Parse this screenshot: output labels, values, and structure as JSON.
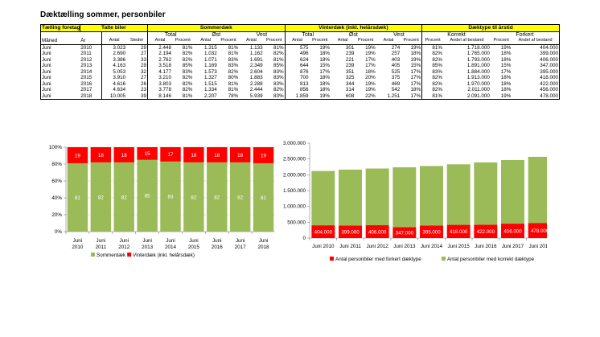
{
  "title": "Dæktælling sommer, personbiler",
  "table": {
    "header_yellow": [
      "Tælling foretaget",
      "Talte biler",
      "Sommerdæk",
      "Vinterdæk (inkl. helårsdæk)",
      "Dæktype til årstid"
    ],
    "header_groups": [
      "Total",
      "Øst",
      "Vest",
      "Total",
      "Øst",
      "Vest",
      "Korrekt",
      "Forkert"
    ],
    "header_sub": [
      "Måned",
      "År",
      "Antal",
      "Steder",
      "Antal",
      "Procent",
      "Antal",
      "Procent",
      "Antal",
      "Procent",
      "Antal",
      "Procent",
      "Antal",
      "Procent",
      "Antal",
      "Procent",
      "Procent",
      "Andel af bestand",
      "Procent",
      "Andel af bestand"
    ],
    "rows": [
      [
        "Juni",
        "2010",
        "3.023",
        "29",
        "2.448",
        "81%",
        "1.315",
        "81%",
        "1.133",
        "81%",
        "575",
        "19%",
        "301",
        "19%",
        "274",
        "19%",
        "81%",
        "1.718.000",
        "19%",
        "404.000"
      ],
      [
        "Juni",
        "2011",
        "2.690",
        "27",
        "2.194",
        "82%",
        "1.032",
        "81%",
        "1.162",
        "82%",
        "496",
        "18%",
        "239",
        "19%",
        "257",
        "18%",
        "82%",
        "1.765.000",
        "18%",
        "399.000"
      ],
      [
        "Juni",
        "2012",
        "3.386",
        "33",
        "2.762",
        "82%",
        "1.071",
        "83%",
        "1.691",
        "81%",
        "624",
        "18%",
        "221",
        "17%",
        "403",
        "19%",
        "82%",
        "1.793.000",
        "18%",
        "406.000"
      ],
      [
        "Juni",
        "2013",
        "4.163",
        "29",
        "3.518",
        "85%",
        "1.169",
        "83%",
        "2.349",
        "85%",
        "644",
        "15%",
        "239",
        "17%",
        "405",
        "15%",
        "85%",
        "1.891.000",
        "15%",
        "347.000"
      ],
      [
        "Juni",
        "2014",
        "5.053",
        "32",
        "4.177",
        "83%",
        "1.573",
        "82%",
        "2.604",
        "83%",
        "876",
        "17%",
        "351",
        "18%",
        "525",
        "17%",
        "83%",
        "1.884.000",
        "17%",
        "395.000"
      ],
      [
        "Juni",
        "2015",
        "3.910",
        "27",
        "3.210",
        "82%",
        "1.327",
        "80%",
        "1.883",
        "83%",
        "700",
        "18%",
        "325",
        "20%",
        "375",
        "17%",
        "82%",
        "1.913.000",
        "18%",
        "418.000"
      ],
      [
        "Juni",
        "2016",
        "4.616",
        "26",
        "3.803",
        "82%",
        "1.515",
        "81%",
        "2.288",
        "83%",
        "813",
        "18%",
        "344",
        "19%",
        "469",
        "17%",
        "82%",
        "1.970.000",
        "18%",
        "422.000"
      ],
      [
        "Juni",
        "2017",
        "4.634",
        "23",
        "3.778",
        "82%",
        "1.334",
        "81%",
        "2.444",
        "82%",
        "856",
        "18%",
        "314",
        "19%",
        "542",
        "18%",
        "82%",
        "2.011.000",
        "18%",
        "456.000"
      ],
      [
        "Juni",
        "2018",
        "10.005",
        "39",
        "8.146",
        "81%",
        "2.207",
        "78%",
        "5.939",
        "83%",
        "1.859",
        "19%",
        "608",
        "22%",
        "1.251",
        "17%",
        "81%",
        "2.091.000",
        "19%",
        "478.000"
      ]
    ]
  },
  "chart_data": [
    {
      "type": "bar",
      "stacked": true,
      "categories": [
        "Juni 2010",
        "Juni 2011",
        "Juni 2012",
        "Juni 2013",
        "Juni 2014",
        "Juni 2015",
        "Juni 2016",
        "Juni 2017",
        "Juni 2018"
      ],
      "series": [
        {
          "name": "Sommerdæk",
          "values": [
            81,
            82,
            82,
            85,
            83,
            82,
            82,
            82,
            81
          ],
          "color": "#9bbb59"
        },
        {
          "name": "Vinterdæk (inkl. helårsdæk)",
          "values": [
            19,
            18,
            18,
            15,
            17,
            18,
            18,
            18,
            19
          ],
          "color": "#ff0000"
        }
      ],
      "yticks": [
        "0%",
        "20%",
        "40%",
        "60%",
        "80%",
        "100%"
      ],
      "ylim": [
        0,
        100
      ],
      "legend": "bottom",
      "grid": true
    },
    {
      "type": "bar",
      "stacked": true,
      "categories": [
        "Juni 2010",
        "Juni 2011",
        "Juni 2012",
        "Juni 2013",
        "Juni 2014",
        "Juni 2015",
        "Juni 2016",
        "Juni 2017",
        "Juni 2018"
      ],
      "series": [
        {
          "name": "Antal personbiler med forkert dæktype",
          "values": [
            404000,
            399000,
            406000,
            347000,
            395000,
            418000,
            422000,
            456000,
            478000
          ],
          "labels": [
            "404.000",
            "399.000",
            "406.000",
            "347.000",
            "395.000",
            "418.000",
            "422.000",
            "456.000",
            "478.000"
          ],
          "color": "#ff0000"
        },
        {
          "name": "Antal personbiler med korrekt dæktype",
          "values": [
            1718000,
            1765000,
            1793000,
            1891000,
            1884000,
            1913000,
            1970000,
            2011000,
            2091000
          ],
          "color": "#9bbb59"
        }
      ],
      "yticks": [
        "0",
        "500.000",
        "1.000.000",
        "1.500.000",
        "2.000.000",
        "2.500.000",
        "3.000.000"
      ],
      "ylim": [
        0,
        3000000
      ],
      "legend": "bottom",
      "grid": false
    }
  ]
}
